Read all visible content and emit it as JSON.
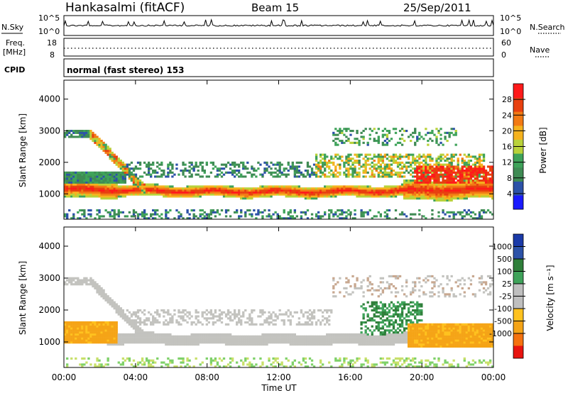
{
  "header": {
    "station": "Hankasalmi (fitACF)",
    "beam": "Beam 15",
    "date": "25/Sep/2011"
  },
  "noise_panel": {
    "left_label": "N.Sky",
    "right_label": "N.Search",
    "y_ticks_left": [
      "10^5",
      "10^0"
    ],
    "y_ticks_right": [
      "10^5",
      "10^0"
    ]
  },
  "freq_panel": {
    "left_label_line1": "Freq.",
    "left_label_line2": "[MHz]",
    "left_ticks": [
      "18",
      "8"
    ],
    "right_label": "Nave",
    "right_ticks": [
      "60",
      "0"
    ]
  },
  "cpid": {
    "label": "CPID",
    "text": "normal (fast stereo) 153"
  },
  "colors": {
    "power": [
      "#1a1aff",
      "#2c52a8",
      "#3f8b54",
      "#3fa35a",
      "#b9d23a",
      "#f5b21e",
      "#f27a14",
      "#e8400f",
      "#ff1a1a"
    ],
    "velocity": [
      "#e8140f",
      "#f5720f",
      "#f5a417",
      "#ffc21f",
      "#bfbfbf",
      "#bfbfbf",
      "#3fa35a",
      "#2f7f3a",
      "#2c52a8",
      "#1a3aa8"
    ],
    "velocity_gray": "#c3c3bf"
  },
  "chart_data": [
    {
      "type": "heatmap",
      "panel": "power",
      "ylabel": "Slant Range [km]",
      "ylim": [
        200,
        4600
      ],
      "y_ticks": [
        "4000",
        "3000",
        "2000",
        "1000"
      ],
      "x_ticks": [
        "00:00",
        "04:00",
        "08:00",
        "12:00",
        "16:00",
        "20:00",
        "00:00"
      ],
      "xlim_hours": [
        0,
        24
      ],
      "colorbar": {
        "label": "Power [dB]",
        "range": [
          0,
          32
        ],
        "ticks": [
          "28",
          "24",
          "20",
          "16",
          "12",
          "8",
          "4"
        ]
      },
      "features": [
        {
          "name": "main_echo_band",
          "range_km_center": 1100,
          "values_db_range": [
            20,
            32
          ],
          "time_hours": [
            0,
            24
          ]
        },
        {
          "name": "descending_arc",
          "range_km": [
            2900,
            1100
          ],
          "time_hours": [
            1.5,
            4.5
          ]
        },
        {
          "name": "upper_patches",
          "range_km": [
            2000,
            3100
          ],
          "time_hours": [
            15,
            23
          ]
        }
      ]
    },
    {
      "type": "heatmap",
      "panel": "velocity",
      "ylabel": "Slant Range [km]",
      "xlabel": "Time UT",
      "ylim": [
        200,
        4600
      ],
      "y_ticks": [
        "4000",
        "3000",
        "2000",
        "1000"
      ],
      "x_ticks": [
        "00:00",
        "04:00",
        "08:00",
        "12:00",
        "16:00",
        "20:00",
        "00:00"
      ],
      "xlim_hours": [
        0,
        24
      ],
      "colorbar": {
        "label": "Velocity [m s⁻¹]",
        "ticks": [
          "1000",
          "500",
          "100",
          "25",
          "-25",
          "-100",
          "-500",
          "-1000"
        ]
      },
      "features": [
        {
          "name": "ground_scatter_band",
          "color": "gray",
          "range_km_center": 1050,
          "time_hours": [
            0,
            20
          ]
        },
        {
          "name": "negative_flow_early",
          "color": "orange",
          "range_km": [
            900,
            1600
          ],
          "time_hours": [
            0,
            3
          ]
        },
        {
          "name": "negative_flow_late",
          "color": "orange",
          "range_km": [
            900,
            1600
          ],
          "time_hours": [
            19,
            24
          ]
        }
      ]
    }
  ]
}
